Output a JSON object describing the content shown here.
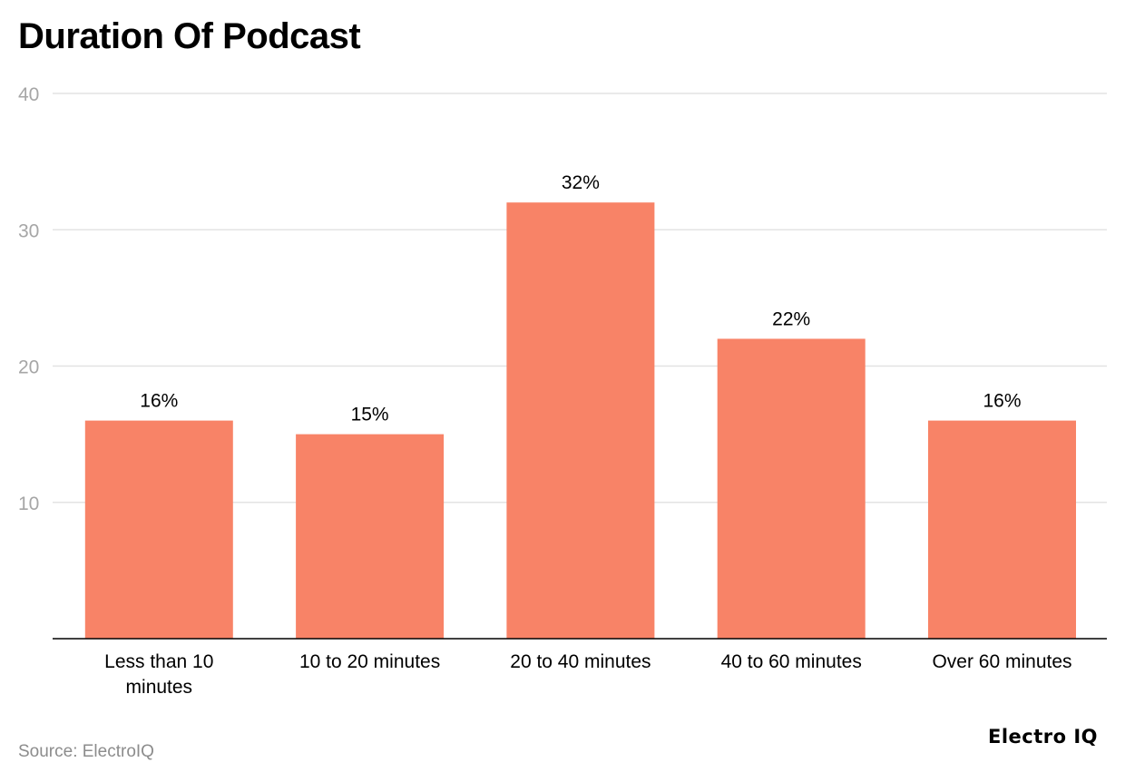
{
  "header": {
    "title": "Duration Of Podcast"
  },
  "footer": {
    "source": "Source: ElectroIQ",
    "brand": "Electro IQ"
  },
  "chart_data": {
    "type": "bar",
    "title": "Duration Of Podcast",
    "xlabel": "",
    "ylabel": "",
    "categories": [
      [
        "Less than 10",
        "minutes"
      ],
      [
        "10 to 20 minutes"
      ],
      [
        "20 to 40 minutes"
      ],
      [
        "40 to 60 minutes"
      ],
      [
        "Over 60 minutes"
      ]
    ],
    "values": [
      16,
      15,
      32,
      22,
      16
    ],
    "data_labels": [
      "16%",
      "15%",
      "32%",
      "22%",
      "16%"
    ],
    "ylim": [
      0,
      40
    ],
    "yticks": [
      10,
      20,
      30,
      40
    ],
    "grid": true,
    "legend": "none",
    "bar_color": "#f88367",
    "axis_color": "#000000",
    "grid_color": "#e3e3e3",
    "tick_label_color": "#a6a6a6"
  }
}
